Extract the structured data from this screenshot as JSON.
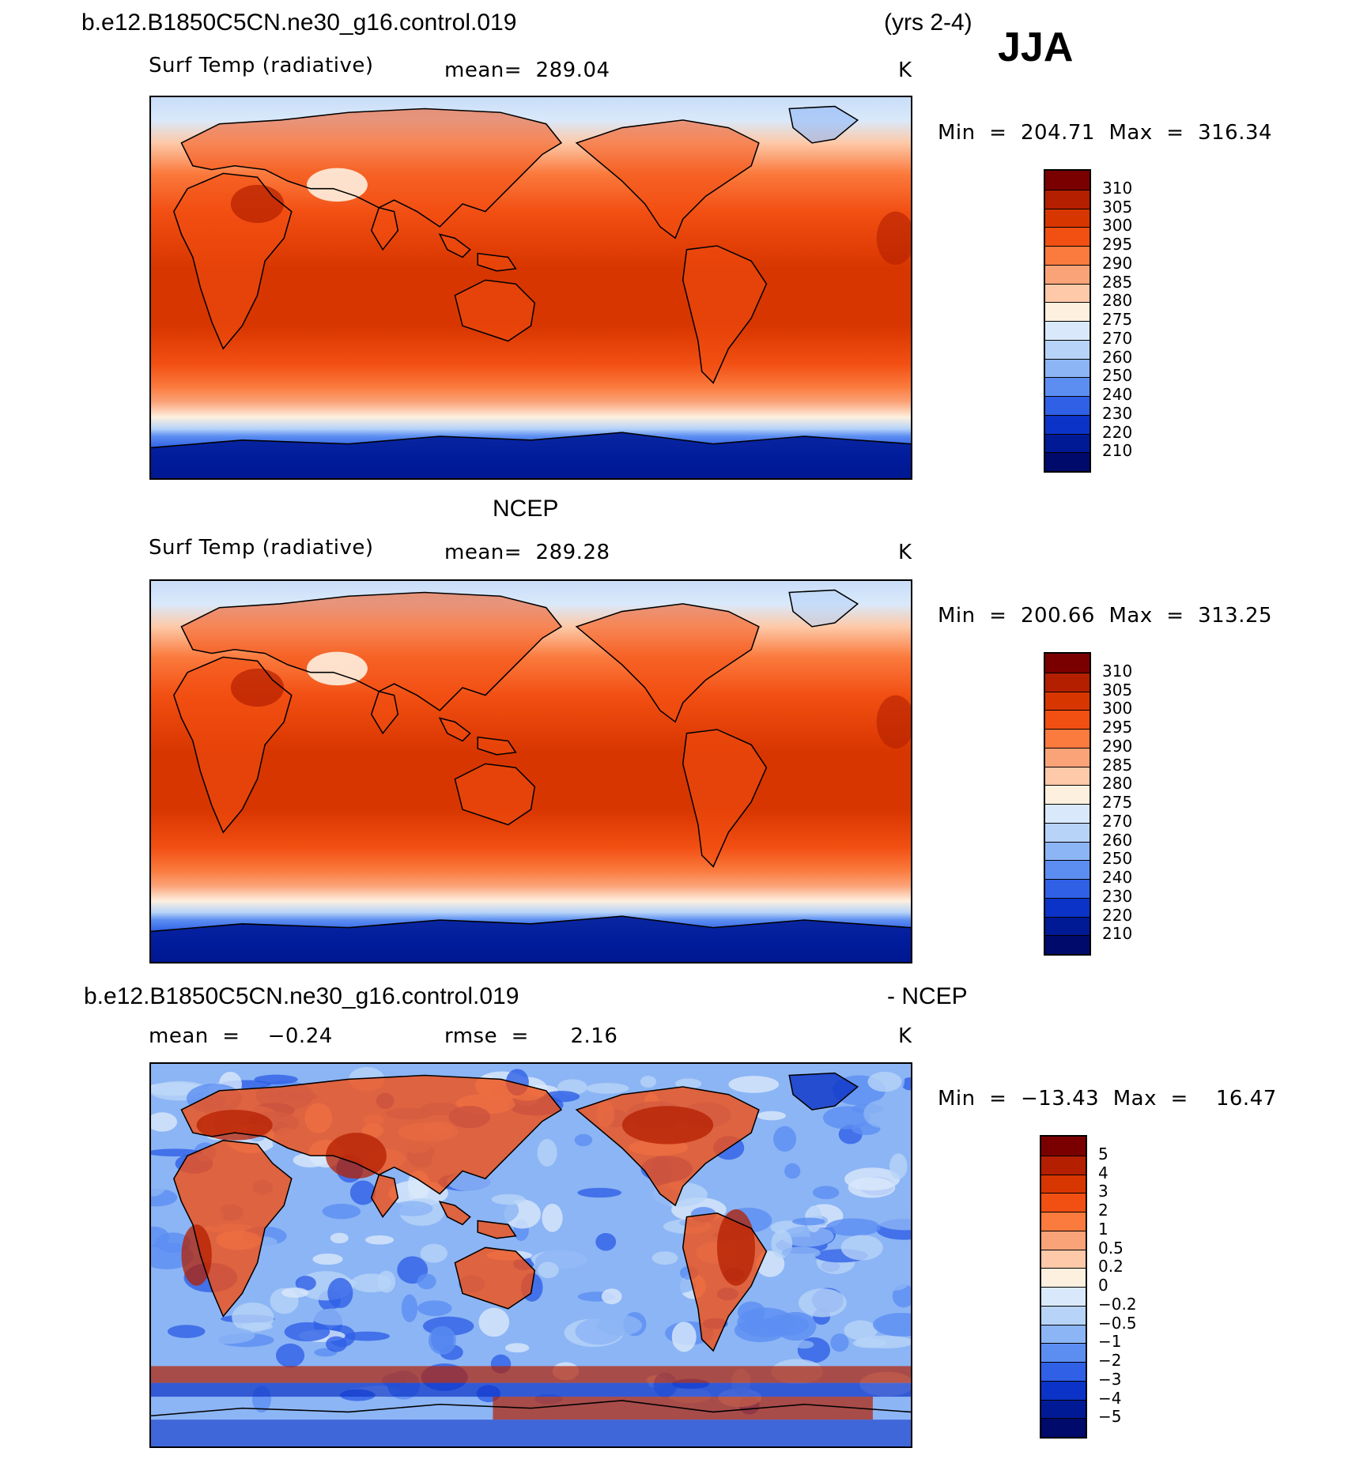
{
  "header": {
    "case": "b.e12.B1850C5CN.ne30_g16.control.019",
    "years": "(yrs 2-4)",
    "season": "JJA"
  },
  "panels": [
    {
      "id": "model",
      "title": "",
      "variable": "Surf Temp (radiative)",
      "stat": "mean=  289.04",
      "units": "K",
      "minmax": "Min  =  204.71  Max  =  316.34",
      "colorbar": {
        "labels": [
          "310",
          "305",
          "300",
          "295",
          "290",
          "285",
          "280",
          "275",
          "270",
          "260",
          "250",
          "240",
          "230",
          "220",
          "210"
        ],
        "colors": [
          "#7a0000",
          "#b41f00",
          "#d83600",
          "#f24f13",
          "#fb7a3d",
          "#fba378",
          "#fdc9a8",
          "#fef0df",
          "#d9e9fb",
          "#b7d3f8",
          "#8cb5f5",
          "#5c8ef2",
          "#2f60e6",
          "#0b33c7",
          "#001a96",
          "#000a6a"
        ]
      }
    },
    {
      "id": "obs",
      "title": "NCEP",
      "variable": "Surf Temp (radiative)",
      "stat": "mean=  289.28",
      "units": "K",
      "minmax": "Min  =  200.66  Max  =  313.25",
      "colorbar": {
        "labels": [
          "310",
          "305",
          "300",
          "295",
          "290",
          "285",
          "280",
          "275",
          "270",
          "260",
          "250",
          "240",
          "230",
          "220",
          "210"
        ],
        "colors": [
          "#7a0000",
          "#b41f00",
          "#d83600",
          "#f24f13",
          "#fb7a3d",
          "#fba378",
          "#fdc9a8",
          "#fef0df",
          "#d9e9fb",
          "#b7d3f8",
          "#8cb5f5",
          "#5c8ef2",
          "#2f60e6",
          "#0b33c7",
          "#001a96",
          "#000a6a"
        ]
      }
    },
    {
      "id": "diff",
      "title_left": "b.e12.B1850C5CN.ne30_g16.control.019",
      "title_right": "- NCEP",
      "stat_mean": "mean  =    −0.24",
      "stat_rmse": "rmse  =      2.16",
      "units": "K",
      "minmax": "Min  =  −13.43  Max  =    16.47",
      "colorbar": {
        "labels": [
          "5",
          "4",
          "3",
          "2",
          "1",
          "0.5",
          "0.2",
          "0",
          "−0.2",
          "−0.5",
          "−1",
          "−2",
          "−3",
          "−4",
          "−5"
        ],
        "colors": [
          "#7a0000",
          "#b41f00",
          "#d83600",
          "#f24f13",
          "#fb7a3d",
          "#fba378",
          "#fdc9a8",
          "#fef0df",
          "#d9e9fb",
          "#b7d3f8",
          "#8cb5f5",
          "#5c8ef2",
          "#2f60e6",
          "#0b33c7",
          "#001a96",
          "#000a6a"
        ]
      }
    }
  ],
  "chart_data": [
    {
      "type": "heatmap",
      "title": "Surf Temp (radiative)",
      "units": "K",
      "mean": 289.04,
      "min": 204.71,
      "max": 316.34,
      "contour_levels": [
        210,
        220,
        230,
        240,
        250,
        260,
        270,
        275,
        280,
        285,
        290,
        295,
        300,
        305,
        310
      ]
    },
    {
      "type": "heatmap",
      "title": "Surf Temp (radiative)",
      "units": "K",
      "mean": 289.28,
      "min": 200.66,
      "max": 313.25,
      "contour_levels": [
        210,
        220,
        230,
        240,
        250,
        260,
        270,
        275,
        280,
        285,
        290,
        295,
        300,
        305,
        310
      ]
    },
    {
      "type": "heatmap",
      "units": "K",
      "mean": -0.24,
      "rmse": 2.16,
      "min": -13.43,
      "max": 16.47,
      "contour_levels": [
        -5,
        -4,
        -3,
        -2,
        -1,
        -0.5,
        -0.2,
        0,
        0.2,
        0.5,
        1,
        2,
        3,
        4,
        5
      ]
    }
  ]
}
